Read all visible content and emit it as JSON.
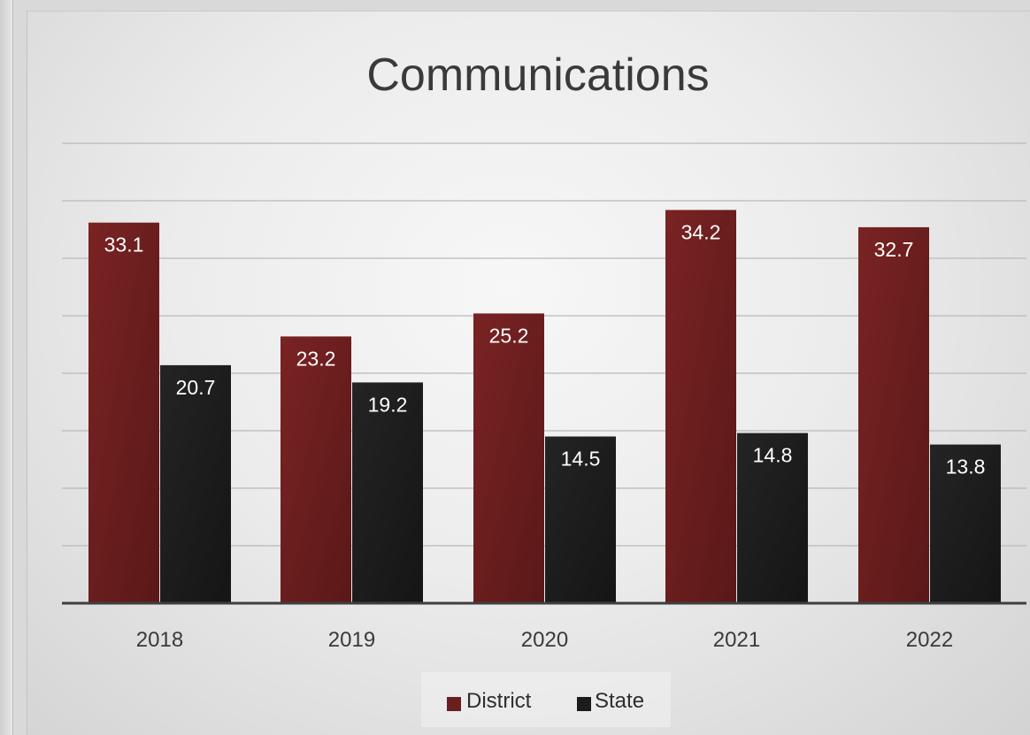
{
  "chart_data": {
    "type": "bar",
    "title": "Communications",
    "xlabel": "",
    "ylabel": "",
    "categories": [
      "2018",
      "2019",
      "2020",
      "2021",
      "2022"
    ],
    "series": [
      {
        "name": "District",
        "values": [
          33.1,
          23.2,
          25.2,
          34.2,
          32.7
        ],
        "color": "#6b1e1e"
      },
      {
        "name": "State",
        "values": [
          20.7,
          19.2,
          14.5,
          14.8,
          13.8
        ],
        "color": "#1c1c1c"
      }
    ],
    "ylim": [
      0,
      40
    ],
    "grid": true,
    "legend_position": "bottom"
  }
}
